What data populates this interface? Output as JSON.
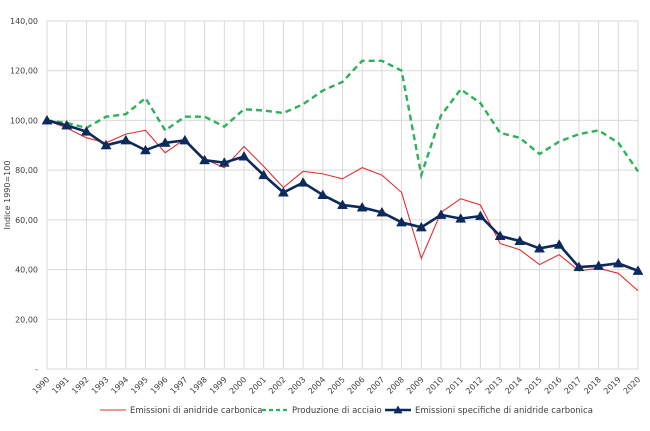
{
  "chart_data": {
    "type": "line",
    "title": "",
    "xlabel": "",
    "ylabel": "Indice 1990=100",
    "ylim": [
      0,
      140
    ],
    "y_ticks": [
      "-",
      "20,00",
      "40,00",
      "60,00",
      "80,00",
      "100,00",
      "120,00",
      "140,00"
    ],
    "x": [
      "1990",
      "1991",
      "1992",
      "1993",
      "1994",
      "1995",
      "1996",
      "1997",
      "1998",
      "1999",
      "2000",
      "2001",
      "2002",
      "2003",
      "2004",
      "2005",
      "2006",
      "2007",
      "2008",
      "2009",
      "2010",
      "2011",
      "2012",
      "2013",
      "2014",
      "2015",
      "2016",
      "2017",
      "2018",
      "2019",
      "2020"
    ],
    "grid": true,
    "legend_position": "bottom",
    "series": [
      {
        "name": "Emissioni di anidride carbonica",
        "color": "#e03030",
        "style": "solid-thin",
        "values": [
          100,
          97,
          93,
          91,
          94.5,
          96,
          87,
          92.5,
          84.5,
          81,
          89.5,
          81.5,
          73,
          79.5,
          78.5,
          76.5,
          81,
          78,
          71,
          44.5,
          63,
          68.5,
          66,
          50.5,
          48,
          42,
          46,
          39.5,
          40.5,
          38.5,
          31.5
        ]
      },
      {
        "name": "Produzione di acciaio",
        "color": "#2eb15a",
        "style": "dashed",
        "values": [
          100,
          99,
          97,
          101.5,
          102.5,
          109,
          96,
          101.5,
          101.5,
          97.5,
          104.5,
          104,
          103,
          106.5,
          112,
          115.5,
          124,
          124,
          120,
          78,
          102,
          112.5,
          107,
          95,
          93,
          86.5,
          91.5,
          94.5,
          96,
          91,
          79.5
        ]
      },
      {
        "name": "Emissioni specifiche di anidride carbonica",
        "color": "#0d2a5c",
        "style": "solid-thick-markers",
        "values": [
          100,
          98,
          95.5,
          90,
          92,
          88,
          91,
          92,
          84,
          83,
          85.5,
          78,
          71,
          75,
          70,
          66,
          65,
          63,
          59,
          57,
          62,
          60.5,
          61.5,
          53.5,
          51.5,
          48.5,
          50,
          41,
          41.5,
          42.5,
          39.5
        ]
      }
    ]
  }
}
